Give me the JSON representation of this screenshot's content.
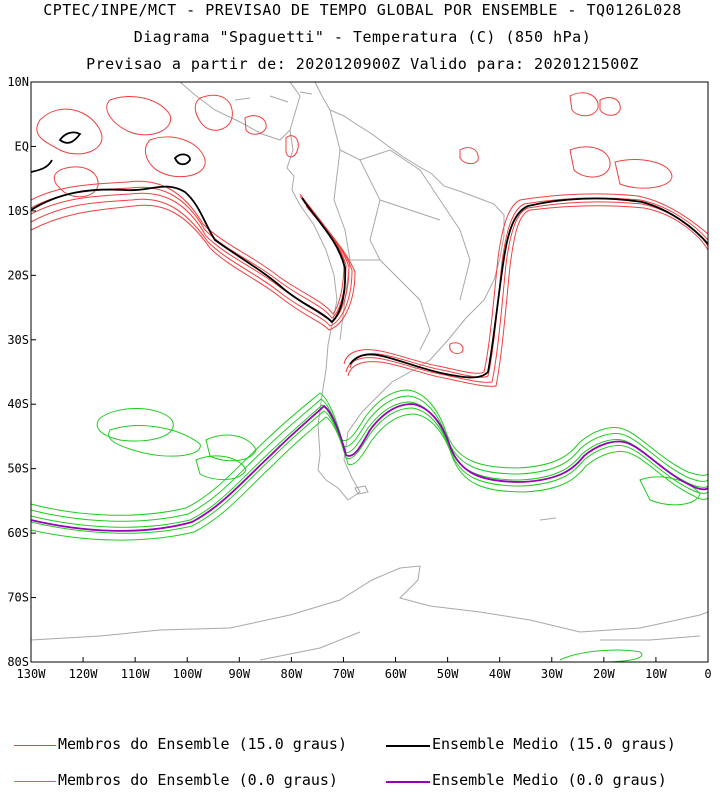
{
  "title": {
    "line1": "CPTEC/INPE/MCT - PREVISAO DE TEMPO GLOBAL POR ENSEMBLE - TQ0126L028",
    "line2": "Diagrama \"Spaguetti\" - Temperatura (C) (850 hPa)",
    "line3": "Previsao a partir de: 2020120900Z  Valido para: 2020121500Z"
  },
  "axes": {
    "lat_labels": [
      "10N",
      "EQ",
      "10S",
      "20S",
      "30S",
      "40S",
      "50S",
      "60S",
      "70S",
      "80S"
    ],
    "lon_labels": [
      "130W",
      "120W",
      "110W",
      "100W",
      "90W",
      "80W",
      "70W",
      "60W",
      "50W",
      "40W",
      "30W",
      "20W",
      "10W",
      "0"
    ]
  },
  "legend": {
    "members_15": "Membros do Ensemble (15.0 graus)",
    "mean_15": "Ensemble Medio (15.0 graus)",
    "members_0": "Membros do Ensemble (0.0 graus)",
    "mean_0": "Ensemble Medio (0.0 graus)"
  },
  "colors": {
    "members_15": "#f04040",
    "mean_15": "#000000",
    "members_0": "#22cc22",
    "mean_0": "#9900bb",
    "coast": "#a0a0a0"
  }
}
